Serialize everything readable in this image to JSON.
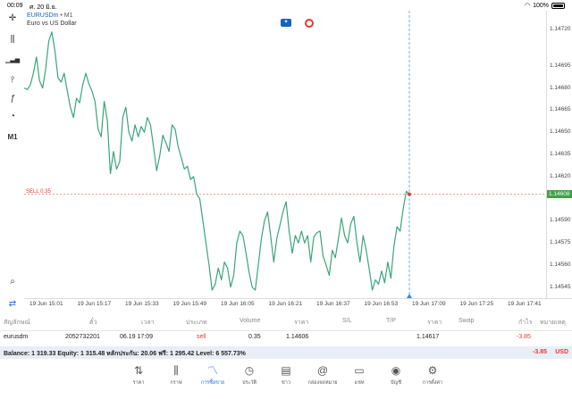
{
  "statusbar": {
    "time": "00:09",
    "date": "ศ. 20 มิ.ย.",
    "battery": "100%"
  },
  "toolbar": {
    "items": [
      {
        "icon": "crosshair-icon",
        "glyph": "✛"
      },
      {
        "icon": "candles-icon",
        "glyph": "⫼"
      },
      {
        "icon": "bar-chart-icon",
        "glyph": "▁▃▅"
      },
      {
        "icon": "indicators-icon",
        "glyph": "⫯"
      },
      {
        "icon": "function-icon",
        "glyph": "ƒ"
      },
      {
        "icon": "objects-icon",
        "glyph": "◔"
      },
      {
        "icon": "timeframe-label",
        "glyph": "M1"
      }
    ],
    "bottom_tools": [
      {
        "icon": "zoom-icon",
        "glyph": "⌕"
      },
      {
        "icon": "switch-icon",
        "glyph": "⇄"
      }
    ]
  },
  "chart": {
    "symbol": "EURUSDm",
    "timeframe": "• M1",
    "description": "Euro vs US Dollar",
    "sell_label": "SELL 0.35",
    "current_price": "1.14608",
    "price_ticks": [
      "1.14720",
      "1.14695",
      "1.14680",
      "1.14665",
      "1.14650",
      "1.14635",
      "1.14620",
      "1.14590",
      "1.14575",
      "1.14560",
      "1.14545"
    ],
    "time_ticks": [
      "19 Jun 15:01",
      "19 Jun 15:17",
      "19 Jun 15:33",
      "19 Jun 15:49",
      "19 Jun 16:05",
      "19 Jun 16:21",
      "19 Jun 16:37",
      "19 Jun 16:53",
      "19 Jun 17:09",
      "19 Jun 17:25",
      "19 Jun 17:41"
    ],
    "line_color": "#3aa57a",
    "sell_line_color": "#e53935",
    "cursor_line_color": "#2f8fd8"
  },
  "chart_data": {
    "type": "line",
    "ylim": [
      1.1454,
      1.1473
    ],
    "values": [
      1.1468,
      1.14679,
      1.14682,
      1.1469,
      1.14701,
      1.14685,
      1.1468,
      1.14693,
      1.14712,
      1.14718,
      1.14705,
      1.14687,
      1.14684,
      1.1469,
      1.14678,
      1.14667,
      1.1466,
      1.14673,
      1.1467,
      1.14682,
      1.1469,
      1.14683,
      1.14678,
      1.14671,
      1.14652,
      1.14647,
      1.14671,
      1.14658,
      1.14622,
      1.14637,
      1.14625,
      1.1463,
      1.1466,
      1.14667,
      1.1465,
      1.14644,
      1.14655,
      1.14647,
      1.14654,
      1.1465,
      1.1466,
      1.14655,
      1.1464,
      1.14624,
      1.14634,
      1.14648,
      1.14643,
      1.14637,
      1.14655,
      1.14652,
      1.1464,
      1.14633,
      1.14625,
      1.14627,
      1.14618,
      1.1462,
      1.14608,
      1.14605,
      1.1459,
      1.14575,
      1.1456,
      1.14543,
      1.14547,
      1.14558,
      1.1455,
      1.14562,
      1.14558,
      1.14545,
      1.14553,
      1.14575,
      1.14583,
      1.1458,
      1.14568,
      1.14555,
      1.14545,
      1.14543,
      1.1456,
      1.14578,
      1.1459,
      1.14596,
      1.1458,
      1.14562,
      1.14578,
      1.14587,
      1.14596,
      1.14603,
      1.14583,
      1.14568,
      1.1458,
      1.14575,
      1.14583,
      1.14575,
      1.1458,
      1.14562,
      1.14579,
      1.14582,
      1.14583,
      1.14566,
      1.1456,
      1.14553,
      1.1457,
      1.14565,
      1.14578,
      1.14592,
      1.1458,
      1.14575,
      1.14588,
      1.14593,
      1.14575,
      1.14562,
      1.1458,
      1.1457,
      1.14557,
      1.14543,
      1.1455,
      1.14547,
      1.14556,
      1.14548,
      1.14562,
      1.14551,
      1.14573,
      1.14586,
      1.14583,
      1.14598,
      1.1461,
      1.14608
    ]
  },
  "positions": {
    "headers": [
      "สัญลักษณ์",
      "ตั๋ว",
      "เวลา",
      "ประเภท",
      "Volume",
      "ราคา",
      "S/L",
      "T/P",
      "ราคา",
      "Swap",
      "กำไร",
      "หมายเหตุ"
    ],
    "rows": [
      {
        "symbol": "eurusdm",
        "ticket": "2052732201",
        "time": "06.19 17:09",
        "type": "sell",
        "volume": "0.35",
        "open_price": "1.14606",
        "sl": "",
        "tp": "",
        "price": "1.14617",
        "swap": "",
        "profit": "-3.85",
        "comment": ""
      }
    ],
    "balance_text": "Balance: 1 319.33 Equity: 1 315.48 หลักประกัน: 20.06 ฟรี: 1 295.42 Level: 6 557.73%",
    "total_profit": "-3.85",
    "currency": "USD"
  },
  "tabs": [
    {
      "icon": "quotes-icon",
      "glyph": "⇅",
      "label": "ราคา"
    },
    {
      "icon": "chart-candles-icon",
      "glyph": "⫼",
      "label": "กราฟ"
    },
    {
      "icon": "trade-icon",
      "glyph": "〽",
      "label": "การซื้อขาย",
      "active": true
    },
    {
      "icon": "history-icon",
      "glyph": "◷",
      "label": "ประวัติ"
    },
    {
      "icon": "news-icon",
      "glyph": "▤",
      "label": "ข่าว"
    },
    {
      "icon": "mailbox-icon",
      "glyph": "@",
      "label": "กล่องจดหมาย"
    },
    {
      "icon": "chat-icon",
      "glyph": "▭",
      "label": "แชท"
    },
    {
      "icon": "account-icon",
      "glyph": "◉",
      "label": "บัญชี"
    },
    {
      "icon": "settings-icon",
      "glyph": "⚙",
      "label": "การตั้งค่า"
    }
  ]
}
